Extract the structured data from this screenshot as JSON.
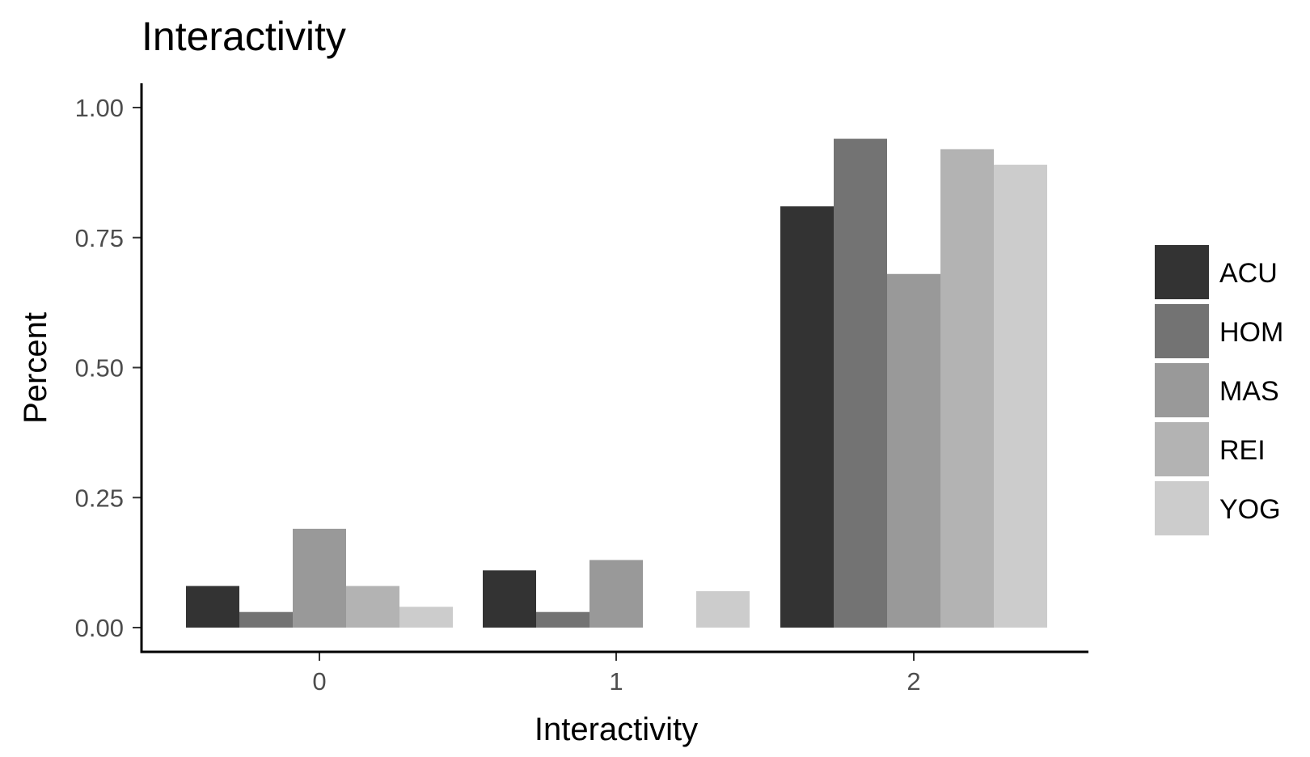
{
  "chart_data": {
    "type": "bar",
    "title": "Interactivity",
    "xlabel": "Interactivity",
    "ylabel": "Percent",
    "categories": [
      "0",
      "1",
      "2"
    ],
    "y_ticks": [
      "0.00",
      "0.25",
      "0.50",
      "0.75",
      "1.00"
    ],
    "ylim": [
      0,
      1
    ],
    "grid": false,
    "legend_position": "right",
    "series": [
      {
        "name": "ACU",
        "color": "#333333",
        "values": [
          0.08,
          0.11,
          0.81
        ]
      },
      {
        "name": "HOM",
        "color": "#737373",
        "values": [
          0.03,
          0.03,
          0.94
        ]
      },
      {
        "name": "MAS",
        "color": "#999999",
        "values": [
          0.19,
          0.13,
          0.68
        ]
      },
      {
        "name": "REI",
        "color": "#b3b3b3",
        "values": [
          0.08,
          0.0,
          0.92
        ]
      },
      {
        "name": "YOG",
        "color": "#cccccc",
        "values": [
          0.04,
          0.07,
          0.89
        ]
      }
    ]
  }
}
